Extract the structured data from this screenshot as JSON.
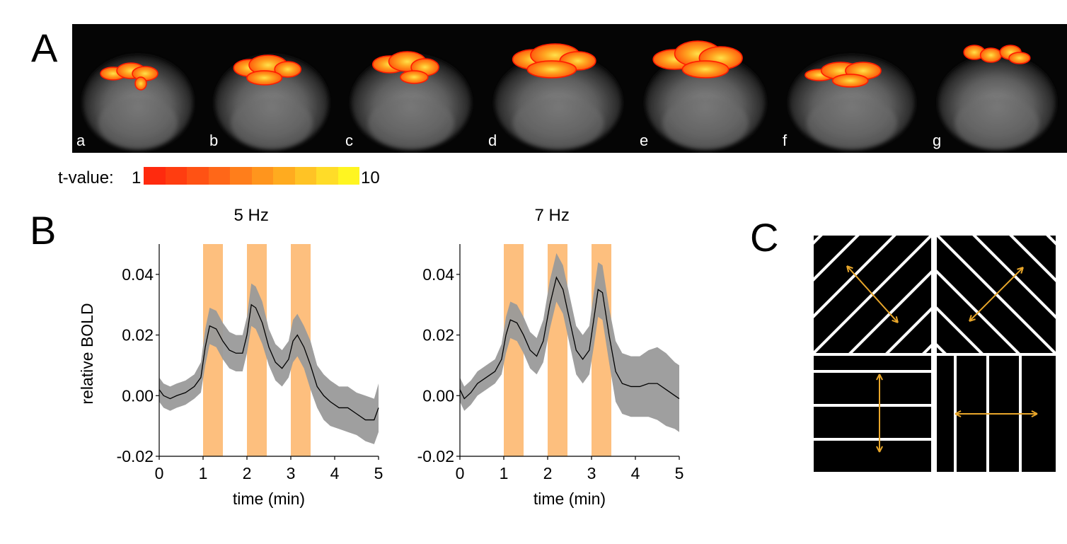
{
  "panel_labels": {
    "a": "A",
    "b": "B",
    "c": "C"
  },
  "slices": {
    "labels": [
      "a",
      "b",
      "c",
      "d",
      "e",
      "f",
      "g"
    ]
  },
  "colorbar": {
    "label": "t-value:",
    "min": "1",
    "max": "10",
    "colors": [
      "#ff2a0e",
      "#ff3d10",
      "#ff5214",
      "#ff6718",
      "#ff7e1b",
      "#ff951d",
      "#ffab1f",
      "#ffc325",
      "#ffdc28",
      "#fff521"
    ]
  },
  "chart_data": [
    {
      "type": "line",
      "title": "5 Hz",
      "xlabel": "time (min)",
      "ylabel": "relative BOLD",
      "xlim": [
        0,
        5
      ],
      "ylim": [
        -0.02,
        0.05
      ],
      "xticks": [
        "0",
        "1",
        "2",
        "3",
        "4",
        "5"
      ],
      "yticks": [
        "-0.02",
        "0.00",
        "0.02",
        "0.04"
      ],
      "stimulus_blocks": [
        [
          1.0,
          1.5
        ],
        [
          2.0,
          2.5
        ],
        [
          3.0,
          3.5
        ]
      ],
      "stimulus_color": "#fdbf7e",
      "band_color": "#9a9a9a",
      "series": [
        {
          "name": "mean",
          "x": [
            0,
            0.1,
            0.25,
            0.4,
            0.6,
            0.8,
            0.95,
            1.05,
            1.15,
            1.3,
            1.45,
            1.6,
            1.75,
            1.9,
            2.0,
            2.1,
            2.2,
            2.35,
            2.5,
            2.65,
            2.8,
            2.95,
            3.05,
            3.15,
            3.3,
            3.45,
            3.6,
            3.75,
            3.9,
            4.1,
            4.3,
            4.5,
            4.7,
            4.9,
            5.0
          ],
          "mean": [
            0.002,
            0.0,
            -0.001,
            0.0,
            0.001,
            0.003,
            0.006,
            0.016,
            0.023,
            0.022,
            0.018,
            0.015,
            0.014,
            0.014,
            0.02,
            0.03,
            0.029,
            0.024,
            0.016,
            0.011,
            0.009,
            0.012,
            0.018,
            0.02,
            0.016,
            0.01,
            0.003,
            0.0,
            -0.002,
            -0.004,
            -0.004,
            -0.006,
            -0.008,
            -0.008,
            -0.004
          ],
          "lower": [
            -0.002,
            -0.004,
            -0.005,
            -0.004,
            -0.003,
            -0.001,
            0.001,
            0.01,
            0.017,
            0.016,
            0.012,
            0.009,
            0.008,
            0.008,
            0.014,
            0.023,
            0.022,
            0.017,
            0.01,
            0.005,
            0.003,
            0.006,
            0.011,
            0.013,
            0.009,
            0.002,
            -0.004,
            -0.008,
            -0.01,
            -0.011,
            -0.012,
            -0.013,
            -0.015,
            -0.016,
            -0.012
          ],
          "upper": [
            0.006,
            0.004,
            0.003,
            0.004,
            0.005,
            0.007,
            0.011,
            0.022,
            0.029,
            0.028,
            0.024,
            0.021,
            0.02,
            0.02,
            0.026,
            0.037,
            0.036,
            0.031,
            0.022,
            0.017,
            0.015,
            0.018,
            0.025,
            0.027,
            0.023,
            0.018,
            0.01,
            0.007,
            0.005,
            0.003,
            0.003,
            0.001,
            0.0,
            -0.001,
            0.004
          ]
        }
      ]
    },
    {
      "type": "line",
      "title": "7 Hz",
      "xlabel": "time (min)",
      "ylabel": "",
      "xlim": [
        0,
        5
      ],
      "ylim": [
        -0.02,
        0.05
      ],
      "xticks": [
        "0",
        "1",
        "2",
        "3",
        "4",
        "5"
      ],
      "yticks": [
        "-0.02",
        "0.00",
        "0.02",
        "0.04"
      ],
      "stimulus_blocks": [
        [
          1.0,
          1.5
        ],
        [
          2.0,
          2.5
        ],
        [
          3.0,
          3.5
        ]
      ],
      "stimulus_color": "#fdbf7e",
      "band_color": "#9a9a9a",
      "series": [
        {
          "name": "mean",
          "x": [
            0,
            0.1,
            0.25,
            0.4,
            0.6,
            0.8,
            0.95,
            1.05,
            1.15,
            1.3,
            1.45,
            1.6,
            1.75,
            1.9,
            2.05,
            2.2,
            2.35,
            2.5,
            2.65,
            2.8,
            2.95,
            3.05,
            3.15,
            3.25,
            3.4,
            3.55,
            3.7,
            3.9,
            4.1,
            4.3,
            4.5,
            4.7,
            4.9,
            5.0
          ],
          "mean": [
            0.002,
            -0.001,
            0.001,
            0.004,
            0.006,
            0.008,
            0.012,
            0.02,
            0.025,
            0.024,
            0.02,
            0.015,
            0.013,
            0.018,
            0.03,
            0.039,
            0.035,
            0.025,
            0.015,
            0.012,
            0.015,
            0.025,
            0.035,
            0.034,
            0.02,
            0.008,
            0.004,
            0.003,
            0.003,
            0.004,
            0.004,
            0.002,
            0.0,
            -0.001
          ],
          "lower": [
            -0.002,
            -0.005,
            -0.003,
            0.0,
            0.002,
            0.004,
            0.007,
            0.014,
            0.019,
            0.018,
            0.014,
            0.009,
            0.007,
            0.011,
            0.022,
            0.031,
            0.027,
            0.017,
            0.007,
            0.004,
            0.007,
            0.016,
            0.026,
            0.025,
            0.011,
            -0.002,
            -0.006,
            -0.007,
            -0.007,
            -0.007,
            -0.008,
            -0.01,
            -0.011,
            -0.012
          ],
          "upper": [
            0.006,
            0.003,
            0.005,
            0.008,
            0.01,
            0.012,
            0.017,
            0.026,
            0.031,
            0.03,
            0.026,
            0.021,
            0.019,
            0.025,
            0.038,
            0.047,
            0.043,
            0.033,
            0.023,
            0.02,
            0.023,
            0.034,
            0.044,
            0.043,
            0.029,
            0.018,
            0.014,
            0.013,
            0.013,
            0.015,
            0.016,
            0.014,
            0.011,
            0.01
          ]
        }
      ]
    }
  ],
  "gratings": {
    "line_color": "#ffffff",
    "arrow_color": "#e8a62a",
    "tiles": [
      {
        "name": "grating-diagonal-135",
        "orientation": "135"
      },
      {
        "name": "grating-diagonal-45",
        "orientation": "45"
      },
      {
        "name": "grating-horizontal",
        "orientation": "0"
      },
      {
        "name": "grating-vertical",
        "orientation": "90"
      }
    ]
  }
}
